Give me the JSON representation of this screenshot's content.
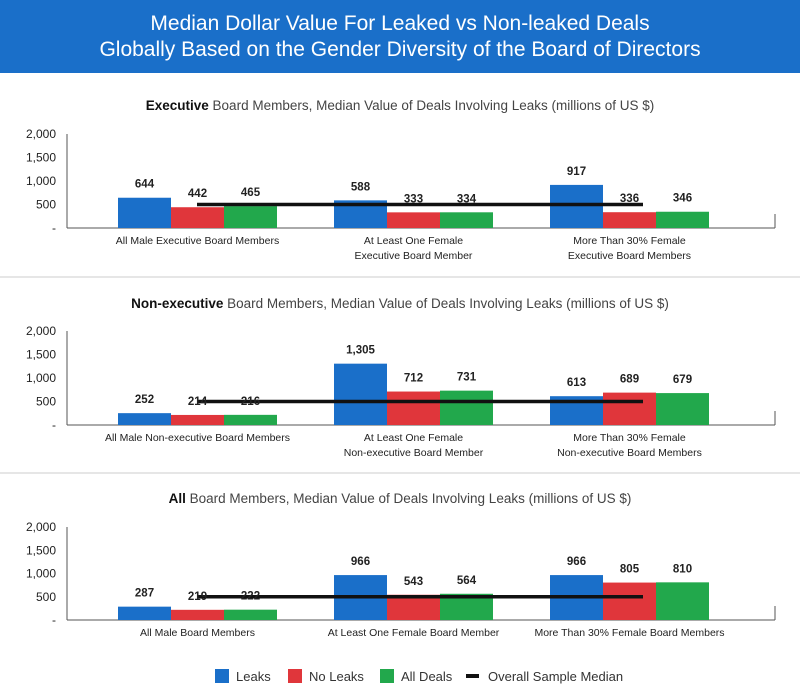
{
  "header": {
    "title_line1": "Median Dollar Value For Leaked vs Non-leaked Deals",
    "title_line2": "Globally Based on the Gender Diversity of the Board of Directors"
  },
  "colors": {
    "header_bg": "#1a6fc9",
    "leaks": "#1a6fc9",
    "no_leaks": "#e0363b",
    "all_deals": "#22a84c",
    "overall_median": "#111111"
  },
  "legend": [
    {
      "label": "Leaks",
      "color": "#1a6fc9",
      "kind": "box"
    },
    {
      "label": "No Leaks",
      "color": "#e0363b",
      "kind": "box"
    },
    {
      "label": "All Deals",
      "color": "#22a84c",
      "kind": "box"
    },
    {
      "label": "Overall Sample Median",
      "color": "#111111",
      "kind": "line"
    }
  ],
  "chart_data": [
    {
      "type": "bar",
      "title_bold": "Executive",
      "title_rest": " Board Members, Median Value of Deals Involving Leaks (millions of US $)",
      "categories": [
        [
          "All Male Executive Board Members"
        ],
        [
          "At Least One Female",
          "Executive Board Member"
        ],
        [
          "More Than 30% Female",
          "Executive Board Members"
        ]
      ],
      "series": [
        {
          "name": "Leaks",
          "values": [
            644,
            588,
            917
          ],
          "labels": [
            "644",
            "588",
            "917"
          ]
        },
        {
          "name": "No Leaks",
          "values": [
            442,
            333,
            336
          ],
          "labels": [
            "442",
            "333",
            "336"
          ]
        },
        {
          "name": "All Deals",
          "values": [
            465,
            334,
            346
          ],
          "labels": [
            "465",
            "334",
            "346"
          ]
        }
      ],
      "overall_median": 500,
      "ylim": [
        0,
        2000
      ],
      "yticks": [
        {
          "value": 0,
          "label": "-"
        },
        {
          "value": 500,
          "label": "500"
        },
        {
          "value": 1000,
          "label": "1,000"
        },
        {
          "value": 1500,
          "label": "1,500"
        },
        {
          "value": 2000,
          "label": "2,000"
        }
      ]
    },
    {
      "type": "bar",
      "title_bold": "Non-executive",
      "title_rest": " Board Members, Median Value of Deals Involving Leaks (millions of US $)",
      "categories": [
        [
          "All Male Non-executive Board Members"
        ],
        [
          "At Least One Female",
          "Non-executive Board Member"
        ],
        [
          "More Than 30% Female",
          "Non-executive Board Members"
        ]
      ],
      "series": [
        {
          "name": "Leaks",
          "values": [
            252,
            1305,
            613
          ],
          "labels": [
            "252",
            "1,305",
            "613"
          ]
        },
        {
          "name": "No Leaks",
          "values": [
            214,
            712,
            689
          ],
          "labels": [
            "214",
            "712",
            "689"
          ]
        },
        {
          "name": "All Deals",
          "values": [
            216,
            731,
            679
          ],
          "labels": [
            "216",
            "731",
            "679"
          ]
        }
      ],
      "overall_median": 500,
      "ylim": [
        0,
        2000
      ],
      "yticks": [
        {
          "value": 0,
          "label": "-"
        },
        {
          "value": 500,
          "label": "500"
        },
        {
          "value": 1000,
          "label": "1,000"
        },
        {
          "value": 1500,
          "label": "1,500"
        },
        {
          "value": 2000,
          "label": "2,000"
        }
      ]
    },
    {
      "type": "bar",
      "title_bold": "All",
      "title_rest": " Board Members, Median Value of Deals Involving Leaks (millions of US $)",
      "categories": [
        [
          "All Male Board Members"
        ],
        [
          "At Least One Female Board Member"
        ],
        [
          "More Than 30% Female Board Members"
        ]
      ],
      "series": [
        {
          "name": "Leaks",
          "values": [
            287,
            966,
            966
          ],
          "labels": [
            "287",
            "966",
            "966"
          ]
        },
        {
          "name": "No Leaks",
          "values": [
            219,
            543,
            805
          ],
          "labels": [
            "219",
            "543",
            "805"
          ]
        },
        {
          "name": "All Deals",
          "values": [
            222,
            564,
            810
          ],
          "labels": [
            "222",
            "564",
            "810"
          ]
        }
      ],
      "overall_median": 500,
      "ylim": [
        0,
        2000
      ],
      "yticks": [
        {
          "value": 0,
          "label": "-"
        },
        {
          "value": 500,
          "label": "500"
        },
        {
          "value": 1000,
          "label": "1,000"
        },
        {
          "value": 1500,
          "label": "1,500"
        },
        {
          "value": 2000,
          "label": "2,000"
        }
      ]
    }
  ]
}
